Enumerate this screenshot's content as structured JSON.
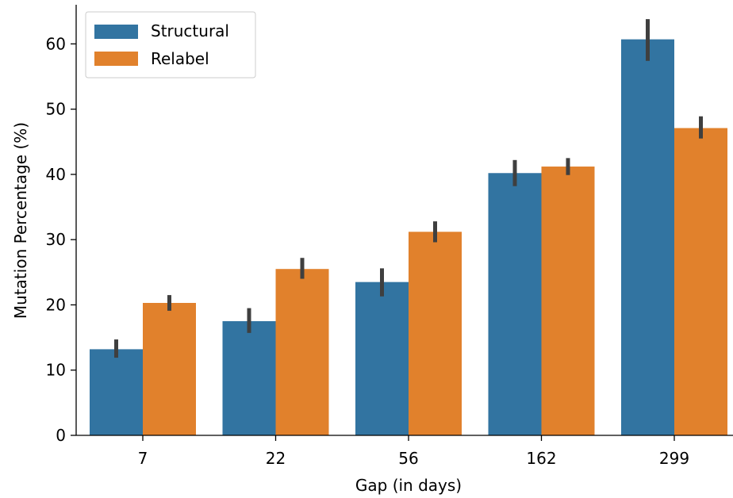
{
  "chart_data": {
    "type": "bar",
    "xlabel": "Gap (in days)",
    "ylabel": "Mutation Percentage (%)",
    "categories": [
      "7",
      "22",
      "56",
      "162",
      "299"
    ],
    "ylim": [
      0,
      66
    ],
    "yticks": [
      0,
      10,
      20,
      30,
      40,
      50,
      60
    ],
    "grid": false,
    "legend_position": "top-left",
    "series": [
      {
        "name": "Structural",
        "color": "#3274a1",
        "values": [
          13.2,
          17.5,
          23.5,
          40.2,
          60.7
        ],
        "error_low": [
          11.9,
          15.7,
          21.3,
          38.2,
          57.4
        ],
        "error_high": [
          14.7,
          19.5,
          25.6,
          42.2,
          63.8
        ]
      },
      {
        "name": "Relabel",
        "color": "#e1812c",
        "values": [
          20.3,
          25.5,
          31.2,
          41.2,
          47.1
        ],
        "error_low": [
          19.1,
          24.0,
          29.6,
          39.9,
          45.5
        ],
        "error_high": [
          21.5,
          27.2,
          32.8,
          42.5,
          48.9
        ]
      }
    ],
    "error_bar_color": "#3f3f3f"
  }
}
